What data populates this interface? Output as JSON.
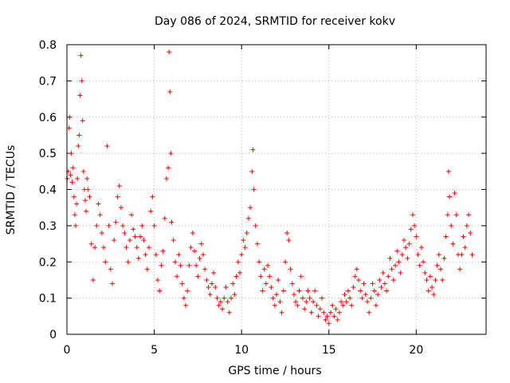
{
  "chart_data": {
    "type": "scatter",
    "title": "Day 086 of 2024, SRMTID for receiver kokv",
    "xlabel": "GPS time / hours",
    "ylabel": "SRMTID / TECUs",
    "xlim": [
      0,
      24
    ],
    "ylim": [
      0,
      0.8
    ],
    "x_ticks": [
      0,
      5,
      10,
      15,
      20
    ],
    "y_ticks": [
      0,
      0.1,
      0.2,
      0.3,
      0.4,
      0.5,
      0.6,
      0.7,
      0.8
    ],
    "x_tick_labels": [
      "0",
      "5",
      "10",
      "15",
      "20"
    ],
    "y_tick_labels": [
      "0",
      "0.1",
      "0.2",
      "0.3",
      "0.4",
      "0.5",
      "0.6",
      "0.7",
      "0.8"
    ],
    "grid": true,
    "marker": "+",
    "color": "#ff0000",
    "series": [
      {
        "name": "SRMTID",
        "points": [
          [
            0.02,
            0.43
          ],
          [
            0.08,
            0.45
          ],
          [
            0.12,
            0.57
          ],
          [
            0.15,
            0.6
          ],
          [
            0.2,
            0.44
          ],
          [
            0.25,
            0.5
          ],
          [
            0.3,
            0.42
          ],
          [
            0.35,
            0.46
          ],
          [
            0.4,
            0.38
          ],
          [
            0.45,
            0.33
          ],
          [
            0.5,
            0.3
          ],
          [
            0.55,
            0.36
          ],
          [
            0.6,
            0.43
          ],
          [
            0.65,
            0.52
          ],
          [
            0.7,
            0.55
          ],
          [
            0.75,
            0.66
          ],
          [
            0.8,
            0.77
          ],
          [
            0.85,
            0.7
          ],
          [
            0.9,
            0.59
          ],
          [
            0.95,
            0.45
          ],
          [
            1.0,
            0.4
          ],
          [
            1.05,
            0.37
          ],
          [
            1.1,
            0.34
          ],
          [
            1.15,
            0.43
          ],
          [
            1.2,
            0.4
          ],
          [
            1.3,
            0.38
          ],
          [
            1.4,
            0.25
          ],
          [
            1.5,
            0.15
          ],
          [
            1.6,
            0.24
          ],
          [
            1.7,
            0.3
          ],
          [
            1.8,
            0.36
          ],
          [
            1.9,
            0.33
          ],
          [
            2.0,
            0.28
          ],
          [
            2.1,
            0.24
          ],
          [
            2.2,
            0.2
          ],
          [
            2.3,
            0.52
          ],
          [
            2.4,
            0.3
          ],
          [
            2.5,
            0.18
          ],
          [
            2.6,
            0.14
          ],
          [
            2.7,
            0.26
          ],
          [
            2.8,
            0.31
          ],
          [
            2.9,
            0.38
          ],
          [
            3.0,
            0.41
          ],
          [
            3.1,
            0.35
          ],
          [
            3.2,
            0.3
          ],
          [
            3.3,
            0.28
          ],
          [
            3.4,
            0.24
          ],
          [
            3.5,
            0.2
          ],
          [
            3.6,
            0.26
          ],
          [
            3.7,
            0.33
          ],
          [
            3.8,
            0.29
          ],
          [
            3.9,
            0.27
          ],
          [
            4.0,
            0.24
          ],
          [
            4.1,
            0.21
          ],
          [
            4.2,
            0.27
          ],
          [
            4.3,
            0.3
          ],
          [
            4.4,
            0.26
          ],
          [
            4.5,
            0.22
          ],
          [
            4.6,
            0.18
          ],
          [
            4.7,
            0.24
          ],
          [
            4.8,
            0.34
          ],
          [
            4.9,
            0.38
          ],
          [
            5.0,
            0.3
          ],
          [
            5.1,
            0.22
          ],
          [
            5.2,
            0.15
          ],
          [
            5.3,
            0.12
          ],
          [
            5.4,
            0.19
          ],
          [
            5.5,
            0.23
          ],
          [
            5.6,
            0.32
          ],
          [
            5.7,
            0.43
          ],
          [
            5.8,
            0.46
          ],
          [
            5.85,
            0.78
          ],
          [
            5.9,
            0.67
          ],
          [
            5.95,
            0.5
          ],
          [
            6.0,
            0.31
          ],
          [
            6.1,
            0.26
          ],
          [
            6.2,
            0.2
          ],
          [
            6.3,
            0.16
          ],
          [
            6.4,
            0.22
          ],
          [
            6.5,
            0.19
          ],
          [
            6.6,
            0.14
          ],
          [
            6.7,
            0.1
          ],
          [
            6.8,
            0.08
          ],
          [
            6.9,
            0.12
          ],
          [
            7.0,
            0.19
          ],
          [
            7.1,
            0.24
          ],
          [
            7.2,
            0.28
          ],
          [
            7.3,
            0.23
          ],
          [
            7.4,
            0.19
          ],
          [
            7.5,
            0.16
          ],
          [
            7.6,
            0.21
          ],
          [
            7.7,
            0.25
          ],
          [
            7.8,
            0.22
          ],
          [
            7.9,
            0.18
          ],
          [
            8.0,
            0.15
          ],
          [
            8.1,
            0.13
          ],
          [
            8.2,
            0.11
          ],
          [
            8.3,
            0.14
          ],
          [
            8.4,
            0.17
          ],
          [
            8.5,
            0.13
          ],
          [
            8.6,
            0.1
          ],
          [
            8.7,
            0.08
          ],
          [
            8.8,
            0.09
          ],
          [
            8.9,
            0.07
          ],
          [
            9.0,
            0.1
          ],
          [
            9.1,
            0.13
          ],
          [
            9.2,
            0.09
          ],
          [
            9.3,
            0.06
          ],
          [
            9.4,
            0.1
          ],
          [
            9.5,
            0.14
          ],
          [
            9.6,
            0.11
          ],
          [
            9.7,
            0.16
          ],
          [
            9.8,
            0.2
          ],
          [
            9.9,
            0.17
          ],
          [
            10.0,
            0.22
          ],
          [
            10.1,
            0.26
          ],
          [
            10.2,
            0.24
          ],
          [
            10.3,
            0.28
          ],
          [
            10.4,
            0.32
          ],
          [
            10.5,
            0.35
          ],
          [
            10.6,
            0.45
          ],
          [
            10.65,
            0.51
          ],
          [
            10.7,
            0.4
          ],
          [
            10.8,
            0.3
          ],
          [
            10.9,
            0.25
          ],
          [
            11.0,
            0.2
          ],
          [
            11.1,
            0.16
          ],
          [
            11.2,
            0.12
          ],
          [
            11.3,
            0.18
          ],
          [
            11.4,
            0.14
          ],
          [
            11.5,
            0.19
          ],
          [
            11.6,
            0.16
          ],
          [
            11.7,
            0.13
          ],
          [
            11.8,
            0.1
          ],
          [
            11.9,
            0.08
          ],
          [
            12.0,
            0.11
          ],
          [
            12.1,
            0.15
          ],
          [
            12.2,
            0.09
          ],
          [
            12.3,
            0.06
          ],
          [
            12.4,
            0.12
          ],
          [
            12.5,
            0.2
          ],
          [
            12.6,
            0.28
          ],
          [
            12.7,
            0.26
          ],
          [
            12.8,
            0.18
          ],
          [
            12.9,
            0.14
          ],
          [
            13.0,
            0.11
          ],
          [
            13.1,
            0.09
          ],
          [
            13.2,
            0.08
          ],
          [
            13.3,
            0.12
          ],
          [
            13.4,
            0.16
          ],
          [
            13.5,
            0.1
          ],
          [
            13.6,
            0.07
          ],
          [
            13.7,
            0.09
          ],
          [
            13.8,
            0.12
          ],
          [
            13.9,
            0.1
          ],
          [
            14.0,
            0.06
          ],
          [
            14.1,
            0.09
          ],
          [
            14.2,
            0.12
          ],
          [
            14.3,
            0.08
          ],
          [
            14.4,
            0.05
          ],
          [
            14.5,
            0.07
          ],
          [
            14.6,
            0.1
          ],
          [
            14.7,
            0.06
          ],
          [
            14.8,
            0.04
          ],
          [
            14.9,
            0.05
          ],
          [
            15.0,
            0.03
          ],
          [
            15.1,
            0.06
          ],
          [
            15.2,
            0.08
          ],
          [
            15.3,
            0.05
          ],
          [
            15.4,
            0.07
          ],
          [
            15.5,
            0.04
          ],
          [
            15.6,
            0.06
          ],
          [
            15.7,
            0.09
          ],
          [
            15.8,
            0.08
          ],
          [
            15.9,
            0.11
          ],
          [
            16.0,
            0.09
          ],
          [
            16.1,
            0.12
          ],
          [
            16.2,
            0.1
          ],
          [
            16.3,
            0.08
          ],
          [
            16.4,
            0.13
          ],
          [
            16.5,
            0.16
          ],
          [
            16.6,
            0.18
          ],
          [
            16.7,
            0.15
          ],
          [
            16.8,
            0.12
          ],
          [
            16.9,
            0.1
          ],
          [
            17.0,
            0.14
          ],
          [
            17.1,
            0.11
          ],
          [
            17.2,
            0.09
          ],
          [
            17.3,
            0.06
          ],
          [
            17.4,
            0.1
          ],
          [
            17.5,
            0.14
          ],
          [
            17.6,
            0.12
          ],
          [
            17.7,
            0.08
          ],
          [
            17.8,
            0.11
          ],
          [
            17.9,
            0.15
          ],
          [
            18.0,
            0.13
          ],
          [
            18.1,
            0.17
          ],
          [
            18.2,
            0.14
          ],
          [
            18.3,
            0.12
          ],
          [
            18.4,
            0.16
          ],
          [
            18.5,
            0.21
          ],
          [
            18.6,
            0.18
          ],
          [
            18.7,
            0.15
          ],
          [
            18.8,
            0.19
          ],
          [
            18.9,
            0.23
          ],
          [
            19.0,
            0.2
          ],
          [
            19.1,
            0.17
          ],
          [
            19.2,
            0.22
          ],
          [
            19.3,
            0.26
          ],
          [
            19.4,
            0.24
          ],
          [
            19.5,
            0.21
          ],
          [
            19.6,
            0.25
          ],
          [
            19.7,
            0.29
          ],
          [
            19.8,
            0.33
          ],
          [
            19.9,
            0.3
          ],
          [
            20.0,
            0.27
          ],
          [
            20.1,
            0.22
          ],
          [
            20.2,
            0.19
          ],
          [
            20.3,
            0.24
          ],
          [
            20.4,
            0.2
          ],
          [
            20.5,
            0.17
          ],
          [
            20.6,
            0.15
          ],
          [
            20.7,
            0.12
          ],
          [
            20.8,
            0.16
          ],
          [
            20.9,
            0.13
          ],
          [
            21.0,
            0.11
          ],
          [
            21.1,
            0.15
          ],
          [
            21.2,
            0.19
          ],
          [
            21.3,
            0.22
          ],
          [
            21.4,
            0.18
          ],
          [
            21.5,
            0.15
          ],
          [
            21.6,
            0.21
          ],
          [
            21.7,
            0.27
          ],
          [
            21.8,
            0.33
          ],
          [
            21.85,
            0.45
          ],
          [
            21.9,
            0.38
          ],
          [
            22.0,
            0.3
          ],
          [
            22.1,
            0.25
          ],
          [
            22.2,
            0.39
          ],
          [
            22.3,
            0.33
          ],
          [
            22.4,
            0.22
          ],
          [
            22.5,
            0.18
          ],
          [
            22.6,
            0.22
          ],
          [
            22.7,
            0.27
          ],
          [
            22.8,
            0.24
          ],
          [
            22.9,
            0.3
          ],
          [
            23.0,
            0.33
          ],
          [
            23.1,
            0.28
          ],
          [
            23.2,
            0.22
          ]
        ]
      }
    ]
  }
}
